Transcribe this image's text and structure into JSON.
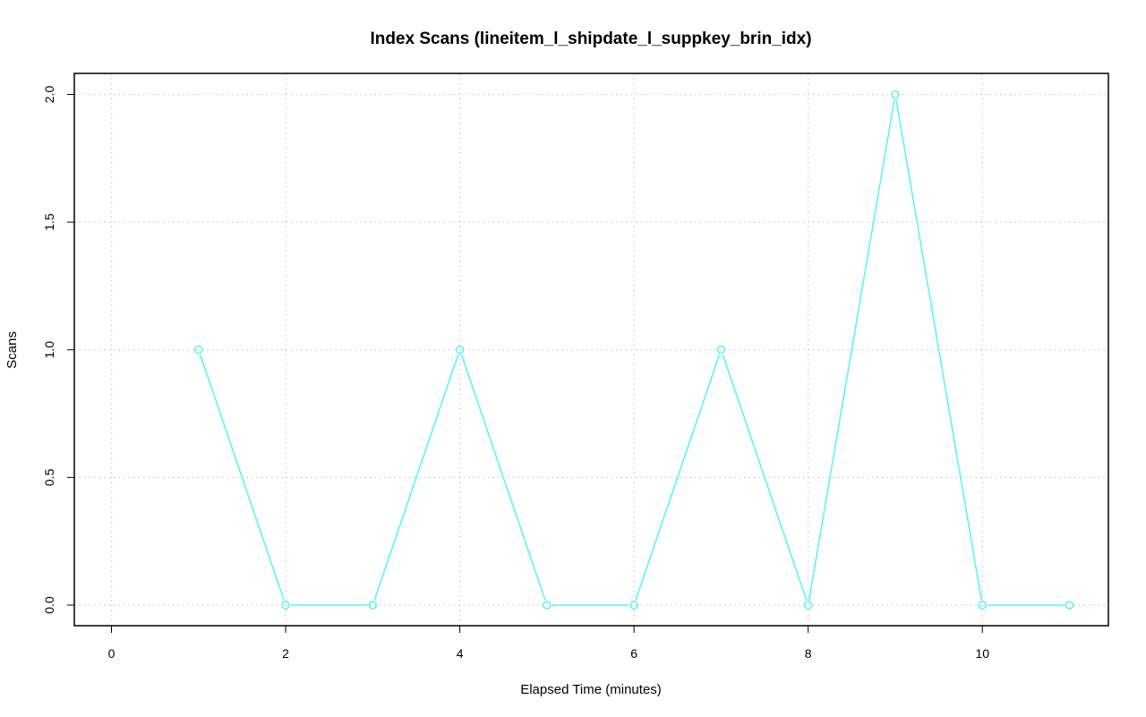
{
  "chart_data": {
    "type": "line",
    "title": "Index Scans (lineitem_l_shipdate_l_suppkey_brin_idx)",
    "xlabel": "Elapsed Time (minutes)",
    "ylabel": "Scans",
    "xlim": [
      0,
      11
    ],
    "ylim": [
      0,
      2
    ],
    "x_ticks": [
      0,
      2,
      4,
      6,
      8,
      10
    ],
    "x_tick_labels": [
      "0",
      "2",
      "4",
      "6",
      "8",
      "10"
    ],
    "y_ticks": [
      0,
      0.5,
      1,
      1.5,
      2
    ],
    "y_tick_labels": [
      "0.0",
      "0.5",
      "1.0",
      "1.5",
      "2.0"
    ],
    "grid": true,
    "series": [
      {
        "x": [
          1,
          2,
          3,
          4,
          5,
          6,
          7,
          8,
          9,
          10,
          11
        ],
        "values": [
          1,
          0,
          0,
          1,
          0,
          0,
          1,
          0,
          2,
          0,
          0
        ],
        "color": "#5cf4f4",
        "marker": "open-circle"
      }
    ]
  }
}
